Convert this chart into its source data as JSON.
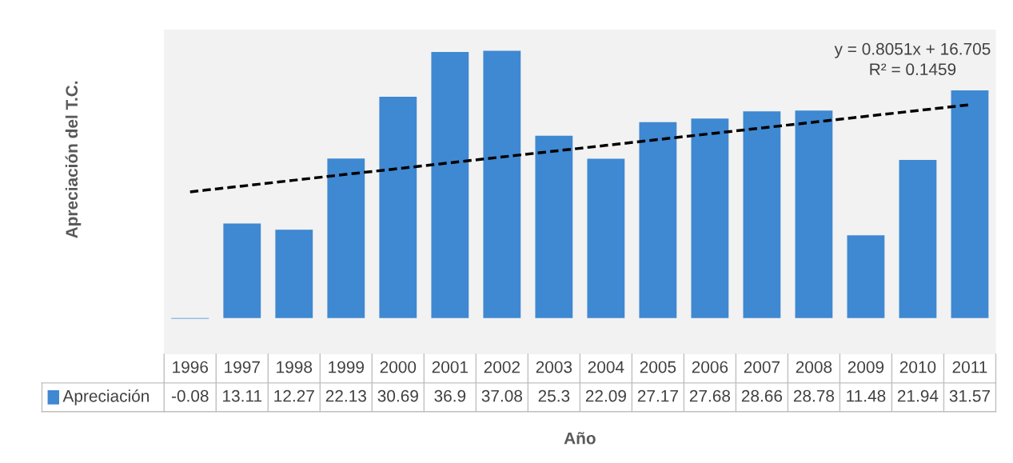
{
  "chart_data": {
    "type": "bar",
    "xlabel": "Año",
    "ylabel": "Apreciación del T.C.",
    "categories": [
      "1996",
      "1997",
      "1998",
      "1999",
      "2000",
      "2001",
      "2002",
      "2003",
      "2004",
      "2005",
      "2006",
      "2007",
      "2008",
      "2009",
      "2010",
      "2011"
    ],
    "series": [
      {
        "name": "Apreciación",
        "color": "#3f88d2",
        "values": [
          -0.08,
          13.11,
          12.27,
          22.13,
          30.69,
          36.9,
          37.08,
          25.3,
          22.09,
          27.17,
          27.68,
          28.66,
          28.78,
          11.48,
          21.94,
          31.57
        ],
        "value_labels": [
          "-0.08",
          "13.11",
          "12.27",
          "22.13",
          "30.69",
          "36.9",
          "37.08",
          "25.3",
          "22.09",
          "27.17",
          "27.68",
          "28.66",
          "28.78",
          "11.48",
          "21.94",
          "31.57"
        ]
      },
      {
        "type": "line",
        "color": "#000000",
        "line_style": "dashed",
        "values": [
          17.51,
          18.31,
          19.12,
          19.93,
          20.73,
          21.54,
          22.34,
          23.15,
          23.95,
          24.76,
          25.56,
          26.37,
          27.17,
          27.98,
          28.78,
          29.59
        ]
      }
    ],
    "ylim": [
      -5,
      40
    ],
    "tick_labels": "x",
    "annotations": [
      "y = 0.8051x + 16.705\nR² = 0.1459"
    ]
  }
}
